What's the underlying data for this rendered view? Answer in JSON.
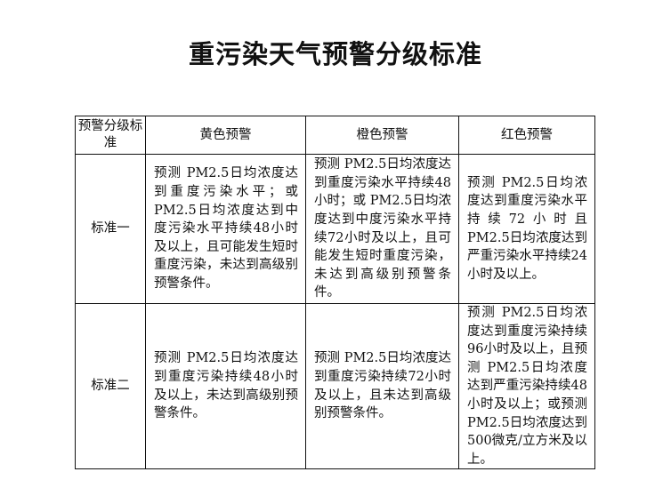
{
  "title": "重污染天气预警分级标准",
  "table": {
    "headers": [
      "预警分级标准",
      "黄色预警",
      "橙色预警",
      "红色预警"
    ],
    "rows": [
      {
        "label": "标准一",
        "yellow": "预测 PM2.5日均浓度达到重度污染水平；或PM2.5日均浓度达到中度污染水平持续48小时及以上，且可能发生短时重度污染，未达到高级别预警条件。",
        "orange": "预测 PM2.5日均浓度达到重度污染水平持续48小时；或 PM2.5日均浓度达到中度污染水平持续72小时及以上，且可能发生短时重度污染，未达到高级别预警条件。",
        "red": "预测 PM2.5日均浓度达到重度污染水平持续72小时且 PM2.5日均浓度达到严重污染水平持续24小时及以上。"
      },
      {
        "label": "标准二",
        "yellow": "预测 PM2.5日均浓度达到重度污染持续48小时及以上，未达到高级别预警条件。",
        "orange": "预测 PM2.5日均浓度达到重度污染持续72小时及以上，且未达到高级别预警条件。",
        "red": "预测 PM2.5日均浓度达到重度污染持续96小时及以上，且预测 PM2.5日均浓度达到严重污染持续48小时及以上；或预测PM2.5日均浓度达到500微克/立方米及以上。"
      }
    ]
  }
}
